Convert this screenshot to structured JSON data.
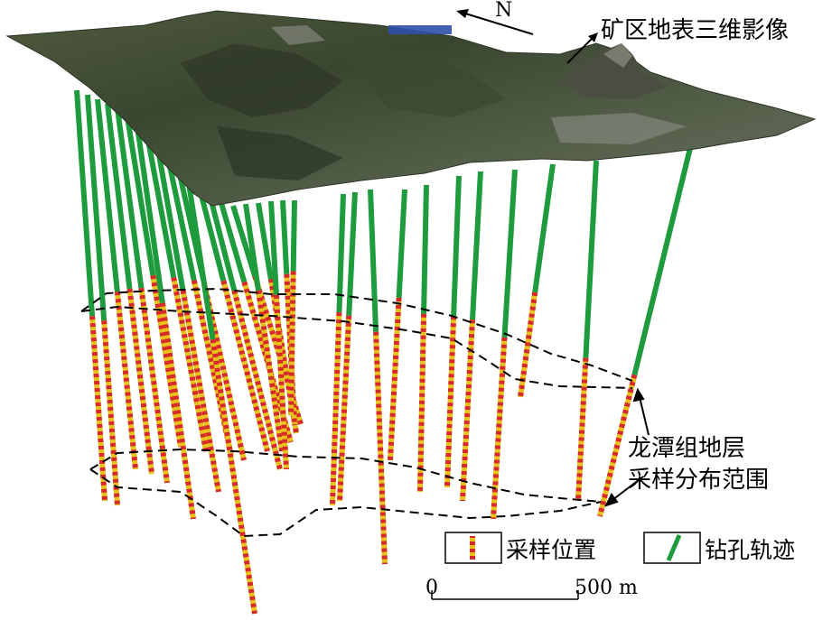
{
  "labels": {
    "north": "N",
    "surface_image": "矿区地表三维影像",
    "range_line1": "龙潭组地层",
    "range_line2": "采样分布范围"
  },
  "legend": {
    "sample_label": "采样位置",
    "borehole_label": "钻孔轨迹",
    "sample_colors": [
      "#e8c21a",
      "#d62a2a"
    ],
    "borehole_color": "#1e9b3c"
  },
  "scale_bar": {
    "start": "0",
    "end": "500 m",
    "length_m": 500
  },
  "colors": {
    "borehole": "#1e9b3c",
    "sample_red": "#d62a2a",
    "sample_yellow": "#e8c21a",
    "outline": "#000000"
  }
}
